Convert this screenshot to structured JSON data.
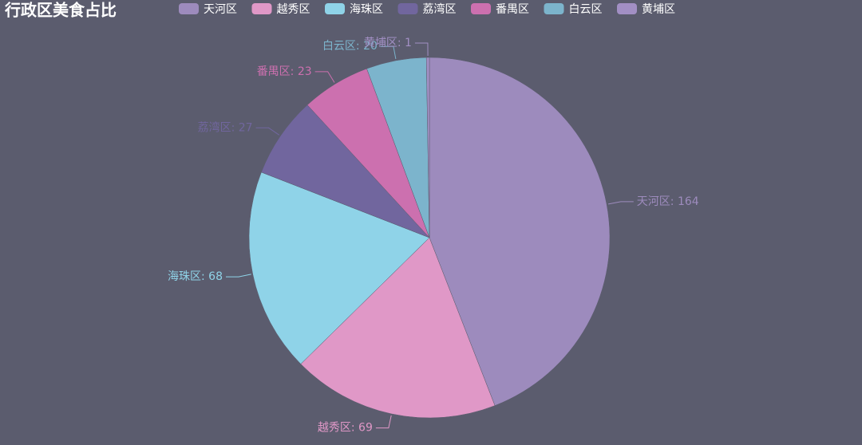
{
  "chart_data": {
    "type": "pie",
    "title": "行政区美食占比",
    "categories": [
      "天河区",
      "越秀区",
      "海珠区",
      "荔湾区",
      "番禺区",
      "白云区",
      "黄埔区"
    ],
    "values": [
      164,
      69,
      68,
      27,
      23,
      20,
      1
    ],
    "value_labels": [
      "天河区: 164",
      "越秀区: 69",
      "海珠区: 68",
      "荔湾区: 27",
      "番禺区: 23",
      "白云区: 20",
      "黄埔区: 1"
    ],
    "colors": [
      "#9d8bbd",
      "#e098c7",
      "#8fd3e8",
      "#71669e",
      "#cc70af",
      "#7cb4cc",
      "#a28fc4"
    ],
    "legend": "top"
  }
}
